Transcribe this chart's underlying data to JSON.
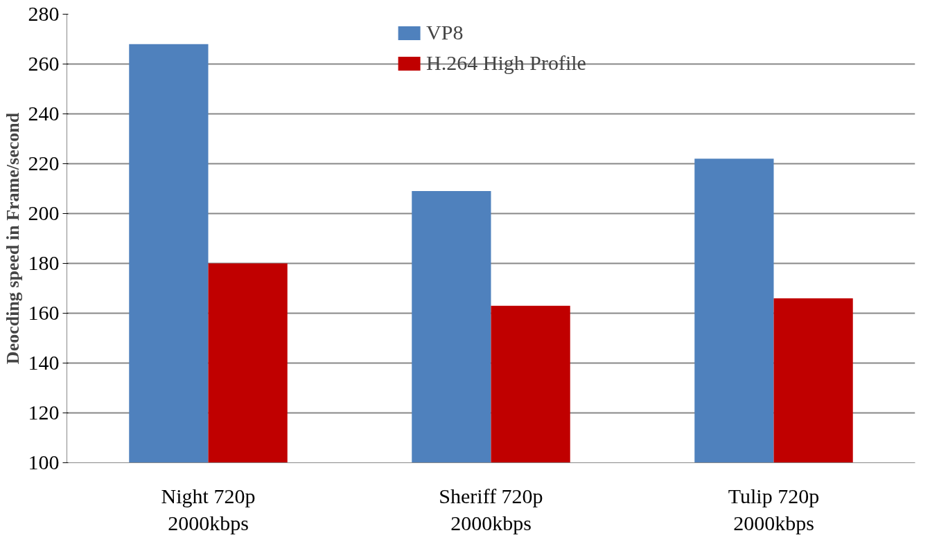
{
  "chart_data": {
    "type": "bar",
    "ylabel": "Deocding speed in Frame/second",
    "categories": [
      "Night 720p\n2000kbps",
      "Sheriff 720p\n2000kbps",
      "Tulip 720p\n2000kbps"
    ],
    "series": [
      {
        "name": "VP8",
        "color": "#4f81bd",
        "values": [
          268,
          209,
          222
        ]
      },
      {
        "name": "H.264 High Profile",
        "color": "#c00000",
        "values": [
          180,
          163,
          166
        ]
      }
    ],
    "ylim": [
      100,
      280
    ],
    "yticks": [
      100,
      120,
      140,
      160,
      180,
      200,
      220,
      240,
      260,
      280
    ],
    "grid": "y",
    "legend": "top"
  }
}
